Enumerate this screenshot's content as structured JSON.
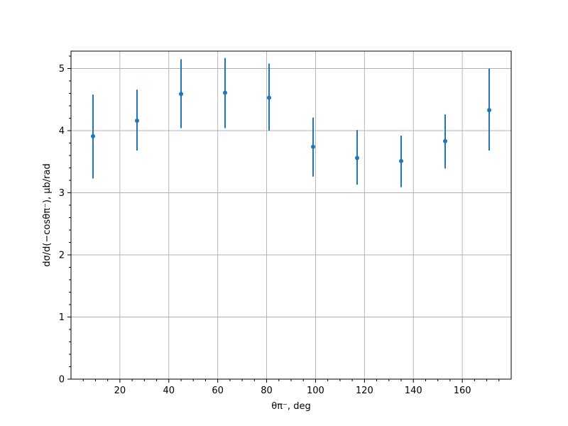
{
  "chart_data": {
    "type": "scatter",
    "title": "",
    "xlabel": "θπ⁻, deg",
    "ylabel": "dσ/d(−cosθπ⁻), μb/rad",
    "xlim": [
      0,
      180
    ],
    "ylim": [
      0,
      5.28
    ],
    "x_ticks": [
      20,
      40,
      60,
      80,
      100,
      120,
      140,
      160
    ],
    "y_ticks": [
      0,
      1,
      2,
      3,
      4,
      5
    ],
    "grid": true,
    "series": [
      {
        "color": "#1f77b4",
        "marker": "circle",
        "points": [
          {
            "x": 9,
            "y": 3.91,
            "err_low": 3.23,
            "err_high": 4.58
          },
          {
            "x": 27,
            "y": 4.16,
            "err_low": 3.68,
            "err_high": 4.66
          },
          {
            "x": 45,
            "y": 4.59,
            "err_low": 4.04,
            "err_high": 5.15
          },
          {
            "x": 63,
            "y": 4.61,
            "err_low": 4.04,
            "err_high": 5.17
          },
          {
            "x": 81,
            "y": 4.53,
            "err_low": 4.0,
            "err_high": 5.08
          },
          {
            "x": 99,
            "y": 3.74,
            "err_low": 3.26,
            "err_high": 4.21
          },
          {
            "x": 117,
            "y": 3.56,
            "err_low": 3.13,
            "err_high": 4.01
          },
          {
            "x": 135,
            "y": 3.51,
            "err_low": 3.09,
            "err_high": 3.92
          },
          {
            "x": 153,
            "y": 3.83,
            "err_low": 3.39,
            "err_high": 4.26
          },
          {
            "x": 171,
            "y": 4.33,
            "err_low": 3.68,
            "err_high": 5.0
          }
        ]
      }
    ]
  }
}
